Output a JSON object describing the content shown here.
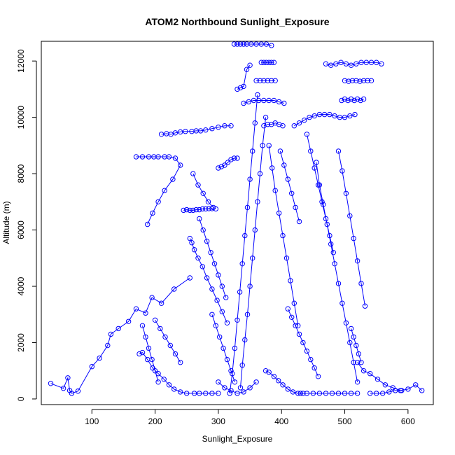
{
  "chart_data": {
    "type": "scatter",
    "title": "ATOM2 Northbound Sunlight_Exposure",
    "xlabel": "Sunlight_Exposure",
    "ylabel": "Altitude (m)",
    "xlim": [
      20,
      640
    ],
    "ylim": [
      -200,
      12700
    ],
    "xticks": [
      100,
      200,
      300,
      400,
      500,
      600
    ],
    "yticks": [
      0,
      2000,
      4000,
      6000,
      8000,
      10000,
      12000
    ],
    "grid": false,
    "legend": "none",
    "color": "#0000FF",
    "marker": "open-circle",
    "connected": true,
    "series": [
      {
        "x": [
          35,
          55,
          62,
          65,
          68,
          78,
          100,
          112,
          125,
          130,
          142,
          158,
          170,
          185,
          195,
          210,
          230,
          255
        ],
        "y": [
          550,
          380,
          750,
          300,
          200,
          280,
          1150,
          1450,
          1900,
          2300,
          2500,
          2750,
          3200,
          3050,
          3600,
          3400,
          3900,
          4300
        ]
      },
      {
        "x": [
          170,
          180,
          190,
          198,
          205,
          215,
          222,
          232,
          240,
          228,
          215,
          205,
          196,
          188
        ],
        "y": [
          8600,
          8600,
          8600,
          8600,
          8600,
          8600,
          8600,
          8550,
          8300,
          7800,
          7400,
          7000,
          6600,
          6200
        ]
      },
      {
        "x": [
          175,
          180,
          188,
          196,
          205,
          214,
          222,
          230,
          240,
          250,
          262,
          270,
          280,
          290,
          300
        ],
        "y": [
          1600,
          1650,
          1400,
          1100,
          900,
          700,
          500,
          350,
          250,
          200,
          200,
          200,
          200,
          200,
          200
        ]
      },
      {
        "x": [
          210,
          218,
          225,
          232,
          240,
          248,
          258,
          265,
          272,
          280,
          290,
          300,
          310,
          320
        ],
        "y": [
          9400,
          9420,
          9400,
          9450,
          9480,
          9500,
          9500,
          9520,
          9520,
          9550,
          9600,
          9650,
          9700,
          9700
        ]
      },
      {
        "x": [
          245,
          250,
          255,
          260,
          265,
          270,
          275,
          280,
          285,
          290,
          296
        ],
        "y": [
          6700,
          6720,
          6700,
          6700,
          6720,
          6720,
          6750,
          6750,
          6760,
          6760,
          6750
        ]
      },
      {
        "x": [
          255,
          258,
          262,
          268,
          275,
          282,
          290,
          298,
          306,
          314
        ],
        "y": [
          5700,
          5550,
          5300,
          5000,
          4700,
          4300,
          3900,
          3500,
          3100,
          2700
        ]
      },
      {
        "x": [
          300,
          305,
          310,
          315,
          320,
          325,
          330
        ],
        "y": [
          8200,
          8250,
          8300,
          8400,
          8500,
          8550,
          8550
        ]
      },
      {
        "x": [
          318,
          322,
          326,
          330,
          334,
          338,
          342,
          346,
          350,
          354,
          358,
          362
        ],
        "y": [
          200,
          900,
          1800,
          2800,
          3800,
          4800,
          5800,
          6800,
          7800,
          8800,
          9800,
          10800
        ]
      },
      {
        "x": [
          325,
          330,
          335,
          340,
          345,
          352,
          360,
          368,
          376,
          384
        ],
        "y": [
          12600,
          12600,
          12600,
          12600,
          12600,
          12600,
          12600,
          12600,
          12600,
          12550
        ]
      },
      {
        "x": [
          330,
          335,
          340,
          345,
          350
        ],
        "y": [
          11000,
          11050,
          11100,
          11700,
          11850
        ]
      },
      {
        "x": [
          335,
          338,
          342,
          346,
          350,
          354,
          358,
          362,
          366,
          370,
          375
        ],
        "y": [
          400,
          1200,
          2100,
          3000,
          4000,
          5000,
          6000,
          7000,
          8000,
          9000,
          10000
        ]
      },
      {
        "x": [
          340,
          348,
          356,
          364,
          372,
          380,
          388,
          396,
          404
        ],
        "y": [
          10500,
          10550,
          10600,
          10600,
          10600,
          10600,
          10600,
          10550,
          10500
        ]
      },
      {
        "x": [
          360,
          366,
          372,
          378,
          384,
          390
        ],
        "y": [
          11300,
          11300,
          11300,
          11300,
          11300,
          11300
        ]
      },
      {
        "x": [
          368,
          372,
          376,
          380,
          384,
          388
        ],
        "y": [
          11950,
          11950,
          11950,
          11950,
          11950,
          11950
        ]
      },
      {
        "x": [
          372,
          378,
          384,
          390,
          396,
          402
        ],
        "y": [
          9700,
          9750,
          9750,
          9800,
          9750,
          9700
        ]
      },
      {
        "x": [
          375,
          380,
          388,
          395,
          402,
          410,
          418,
          426,
          434
        ],
        "y": [
          1000,
          950,
          800,
          650,
          500,
          350,
          250,
          200,
          200
        ]
      },
      {
        "x": [
          380,
          385,
          390,
          396,
          402,
          408,
          414,
          420,
          426
        ],
        "y": [
          9000,
          8200,
          7400,
          6600,
          5800,
          5000,
          4200,
          3400,
          2600
        ]
      },
      {
        "x": [
          430,
          440,
          450,
          460,
          470,
          480,
          490,
          500,
          510,
          520
        ],
        "y": [
          200,
          200,
          200,
          200,
          200,
          200,
          200,
          200,
          200,
          200
        ]
      },
      {
        "x": [
          420,
          428,
          436,
          444,
          452,
          460,
          468,
          476,
          484,
          492,
          500,
          508,
          516
        ],
        "y": [
          9700,
          9800,
          9900,
          10000,
          10050,
          10100,
          10100,
          10100,
          10050,
          10000,
          10000,
          10050,
          10100
        ]
      },
      {
        "x": [
          470,
          478,
          486,
          494,
          502,
          510,
          518,
          526,
          534,
          542,
          550,
          558
        ],
        "y": [
          11900,
          11850,
          11900,
          11950,
          11900,
          11850,
          11900,
          11950,
          11950,
          11950,
          11950,
          11900
        ]
      },
      {
        "x": [
          500,
          506,
          512,
          518,
          524,
          530,
          536,
          542
        ],
        "y": [
          11300,
          11280,
          11300,
          11300,
          11280,
          11300,
          11300,
          11300
        ]
      },
      {
        "x": [
          495,
          500,
          505,
          510,
          515,
          520,
          525,
          530
        ],
        "y": [
          10600,
          10650,
          10600,
          10650,
          10600,
          10650,
          10600,
          10650
        ]
      },
      {
        "x": [
          455,
          460,
          466,
          472,
          478,
          484,
          490,
          496,
          502,
          508,
          514,
          520
        ],
        "y": [
          8400,
          7600,
          6900,
          6200,
          5500,
          4800,
          4100,
          3400,
          2700,
          2000,
          1300,
          600
        ]
      },
      {
        "x": [
          490,
          496,
          502,
          508,
          514,
          520,
          526,
          532
        ],
        "y": [
          8800,
          8100,
          7300,
          6500,
          5700,
          4900,
          4100,
          3300
        ]
      },
      {
        "x": [
          520,
          530,
          540,
          552,
          564,
          576,
          588,
          600,
          612,
          622
        ],
        "y": [
          1300,
          1000,
          900,
          700,
          500,
          400,
          300,
          350,
          500,
          300
        ]
      },
      {
        "x": [
          540,
          550,
          560,
          570,
          580,
          590
        ],
        "y": [
          200,
          200,
          200,
          250,
          300,
          300
        ]
      },
      {
        "x": [
          440,
          446,
          452,
          458,
          464,
          470,
          476,
          482
        ],
        "y": [
          9400,
          8800,
          8200,
          7600,
          7000,
          6400,
          5800,
          5200
        ]
      },
      {
        "x": [
          270,
          276,
          282,
          288,
          294,
          300,
          306,
          312
        ],
        "y": [
          6400,
          6000,
          5600,
          5200,
          4800,
          4400,
          4000,
          3600
        ]
      },
      {
        "x": [
          290,
          296,
          302,
          308,
          314,
          320,
          326
        ],
        "y": [
          3000,
          2600,
          2200,
          1800,
          1400,
          1000,
          600
        ]
      },
      {
        "x": [
          410,
          416,
          422,
          428,
          434,
          440,
          446,
          452,
          458
        ],
        "y": [
          3200,
          2900,
          2600,
          2300,
          2000,
          1700,
          1400,
          1100,
          800
        ]
      },
      {
        "x": [
          300,
          310,
          320,
          330,
          340,
          350,
          360
        ],
        "y": [
          600,
          400,
          300,
          200,
          250,
          400,
          600
        ]
      },
      {
        "x": [
          200,
          208,
          216,
          224,
          232,
          240
        ],
        "y": [
          2800,
          2500,
          2200,
          1900,
          1600,
          1300
        ]
      },
      {
        "x": [
          180,
          185,
          190,
          195,
          200,
          205
        ],
        "y": [
          2600,
          2200,
          1800,
          1400,
          1000,
          600
        ]
      },
      {
        "x": [
          260,
          268,
          276,
          284,
          292
        ],
        "y": [
          8000,
          7600,
          7300,
          7000,
          6800
        ]
      },
      {
        "x": [
          398,
          404,
          410,
          416,
          422,
          428
        ],
        "y": [
          8800,
          8300,
          7800,
          7300,
          6800,
          6300
        ]
      },
      {
        "x": [
          510,
          514,
          518,
          522,
          526
        ],
        "y": [
          2500,
          2200,
          1900,
          1600,
          1300
        ]
      }
    ]
  }
}
